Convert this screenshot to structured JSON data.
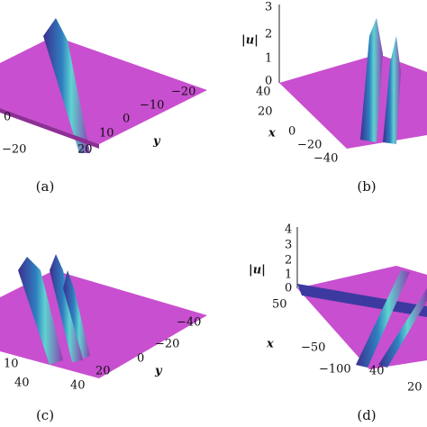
{
  "panels": [
    {
      "caption": "(a)",
      "ticks": [
        "0",
        "−20",
        "20",
        "10",
        "0",
        "−10",
        "−20"
      ],
      "axis": "y"
    },
    {
      "caption": "(b)",
      "zlabel": "|u|",
      "ticks": [
        "3",
        "2",
        "1",
        "0",
        "40",
        "20",
        "0",
        "−20",
        "−40"
      ],
      "axis": "x"
    },
    {
      "caption": "(c)",
      "ticks": [
        "10",
        "40",
        "40",
        "20",
        "0",
        "−20",
        "−40"
      ],
      "axis": "y"
    },
    {
      "caption": "(d)",
      "zlabel": "|u|",
      "ticks": [
        "4",
        "3",
        "2",
        "1",
        "0",
        "50",
        "−50",
        "−100",
        "40",
        "20"
      ],
      "axis": "x"
    }
  ]
}
